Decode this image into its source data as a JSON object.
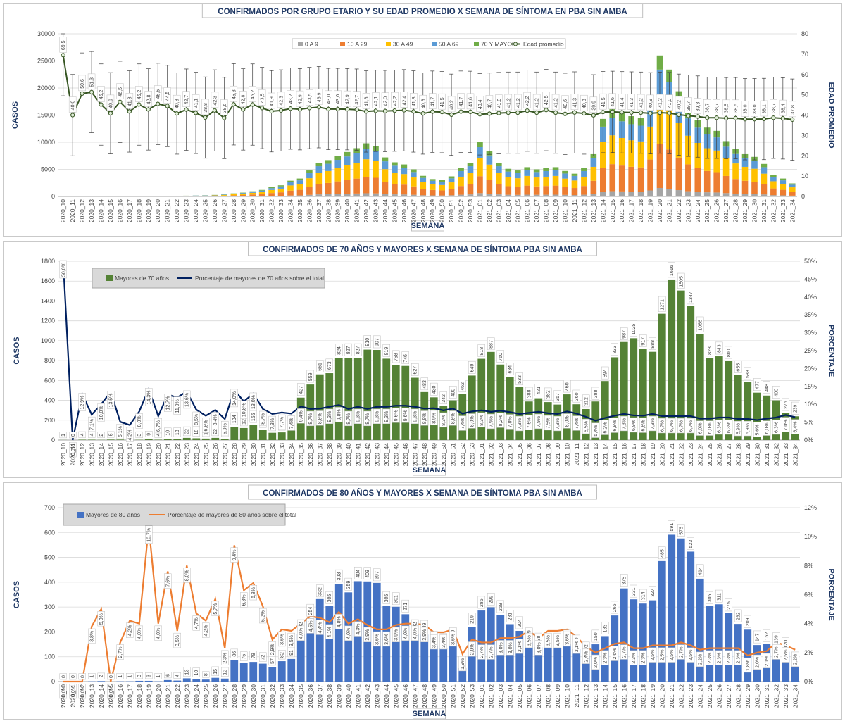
{
  "charts": [
    {
      "title": "CONFIRMADOS POR GRUPO ETARIO Y SU EDAD PROMEDIO X SEMANA DE SÍNTOMA EN PBA SIN AMBA",
      "xlabel": "SEMANA",
      "ylabel_left": "CASOS",
      "ylabel_right": "EDAD PROMEDIO",
      "left_ticks": [
        "0",
        "5000",
        "10000",
        "15000",
        "20000",
        "25000",
        "30000"
      ],
      "right_ticks": [
        "0",
        "10",
        "20",
        "30",
        "40",
        "50",
        "60",
        "70",
        "80"
      ],
      "legend": [
        "0 A 9",
        "10 A 29",
        "30 A 49",
        "50 A 69",
        "70 Y MAYOR",
        "Edad promedio"
      ]
    },
    {
      "title": "CONFIRMADOS DE 70 AÑOS Y MAYORES X SEMANA DE SÍNTOMA PBA SIN AMBA",
      "xlabel": "SEMANA",
      "ylabel_left": "CASOS",
      "ylabel_right": "PORCENTAJE",
      "left_ticks": [
        "0",
        "200",
        "400",
        "600",
        "800",
        "1000",
        "1200",
        "1400",
        "1600",
        "1800"
      ],
      "right_ticks": [
        "0%",
        "5%",
        "10%",
        "15%",
        "20%",
        "25%",
        "30%",
        "35%",
        "40%",
        "45%",
        "50%"
      ],
      "legend": [
        "Mayores de 70 años",
        "Porcentaje de mayores de 70 años sobre el total"
      ]
    },
    {
      "title": "CONFIRMADOS DE 80 AÑOS Y MAYORES X SEMANA DE SÍNTOMA PBA SIN AMBA",
      "xlabel": "SEMANA",
      "ylabel_left": "CASOS",
      "ylabel_right": "PORCENTAJE",
      "left_ticks": [
        "0",
        "100",
        "200",
        "300",
        "400",
        "500",
        "600",
        "700"
      ],
      "right_ticks": [
        "0%",
        "2%",
        "4%",
        "6%",
        "8%",
        "10%",
        "12%"
      ],
      "legend": [
        "Mayores de 80 años",
        "Porcentaje de mayores de 80 años sobre el total"
      ]
    }
  ],
  "colors": {
    "c0a9": "#a5a5a5",
    "c10a29": "#ed7d31",
    "c30a49": "#ffc000",
    "c50a69": "#5b9bd5",
    "c70": "#70ad47",
    "edad": "#375623",
    "green_bar": "#548235",
    "navy_line": "#002060",
    "blue_bar": "#4472c4",
    "orange_line": "#ed7d31"
  },
  "chart_data": [
    {
      "type": "bar",
      "stacked": true,
      "categories": [
        "2020_10",
        "2020_11",
        "2020_12",
        "2020_13",
        "2020_14",
        "2020_15",
        "2020_16",
        "2020_17",
        "2020_18",
        "2020_19",
        "2020_20",
        "2020_21",
        "2020_22",
        "2020_23",
        "2020_24",
        "2020_25",
        "2020_26",
        "2020_27",
        "2020_28",
        "2020_29",
        "2020_30",
        "2020_31",
        "2020_32",
        "2020_33",
        "2020_34",
        "2020_35",
        "2020_36",
        "2020_37",
        "2020_38",
        "2020_39",
        "2020_40",
        "2020_41",
        "2020_42",
        "2020_43",
        "2020_44",
        "2020_45",
        "2020_46",
        "2020_47",
        "2020_48",
        "2020_49",
        "2020_50",
        "2020_51",
        "2020_52",
        "2020_53",
        "2021_01",
        "2021_02",
        "2021_03",
        "2021_04",
        "2021_05",
        "2021_06",
        "2021_07",
        "2021_08",
        "2021_09",
        "2021_10",
        "2021_11",
        "2021_12",
        "2021_13",
        "2021_14",
        "2021_15",
        "2021_16",
        "2021_17",
        "2021_18",
        "2021_19",
        "2021_20",
        "2021_21",
        "2021_22",
        "2021_23",
        "2021_24",
        "2021_25",
        "2021_26",
        "2021_27",
        "2021_28",
        "2021_29",
        "2021_30",
        "2021_31",
        "2021_32",
        "2021_33",
        "2021_34"
      ],
      "totals": [
        2,
        10,
        33,
        57,
        20,
        48,
        29,
        40,
        66,
        55,
        50,
        96,
        110,
        140,
        180,
        220,
        280,
        360,
        560,
        700,
        950,
        1200,
        1700,
        2050,
        2900,
        3300,
        4800,
        6200,
        6700,
        7500,
        8200,
        8900,
        9800,
        9300,
        7200,
        6300,
        5900,
        5000,
        3800,
        3200,
        3000,
        3700,
        5200,
        6200,
        10100,
        8400,
        6200,
        5100,
        4800,
        5400,
        5000,
        5200,
        5400,
        4700,
        4200,
        5200,
        7800,
        14300,
        16100,
        15400,
        14800,
        14500,
        18400,
        26000,
        23400,
        19400,
        16000,
        14100,
        12700,
        12100,
        10200,
        8700,
        7800,
        7300,
        6000,
        4000,
        3300,
        2400
      ],
      "shares_order": [
        "0 A 9",
        "10 A 29",
        "30 A 49",
        "50 A 69",
        "70 Y MAYOR"
      ],
      "shares": [
        0.06,
        0.31,
        0.33,
        0.2,
        0.1
      ],
      "age_avg": [
        69.5,
        40.0,
        50.6,
        51.3,
        45.2,
        40.9,
        46.5,
        41.8,
        45.2,
        42.8,
        45.5,
        44.5,
        40.8,
        42.7,
        41.1,
        38.8,
        42.3,
        38.6,
        45.3,
        42.8,
        45.2,
        43.5,
        41.9,
        42.3,
        43.2,
        42.9,
        43.5,
        43.9,
        43.0,
        43.0,
        42.9,
        42.7,
        41.8,
        42.1,
        42.0,
        42.2,
        42.4,
        41.8,
        40.8,
        41.7,
        41.5,
        40.2,
        41.7,
        41.6,
        40.4,
        40.7,
        41.0,
        41.2,
        41.2,
        42.2,
        41.2,
        42.5,
        41.2,
        40.6,
        41.3,
        40.8,
        39.9,
        41.5,
        41.6,
        41.4,
        41.3,
        41.2,
        40.9,
        41.2,
        41.0,
        40.2,
        39.7,
        39.3,
        38.7,
        38.7,
        38.5,
        38.5,
        38.0,
        38.0,
        38.1,
        38.7,
        38.4,
        37.8
      ],
      "age_labels": [
        "69,5",
        "40,0",
        "50,6",
        "51,3",
        "45,2",
        "40,9",
        "46,5",
        "41,8",
        "45,2",
        "42,8",
        "45,5",
        "44,5",
        "40,8",
        "42,7",
        "41,1",
        "38,8",
        "42,3",
        "38,6",
        "45,3",
        "42,8",
        "45,2",
        "43,5",
        "41,9",
        "42,3",
        "43,2",
        "42,9",
        "43,5",
        "43,9",
        "43,0",
        "43,0",
        "42,9",
        "42,7",
        "41,8",
        "42,1",
        "42,0",
        "42,2",
        "42,4",
        "41,8",
        "40,8",
        "41,7",
        "41,5",
        "40,2",
        "41,7",
        "41,6",
        "40,4",
        "40,7",
        "41,0",
        "41,2",
        "41,2",
        "42,2",
        "41,2",
        "42,5",
        "41,2",
        "40,6",
        "41,3",
        "40,8",
        "39,9",
        "41,5",
        "41,6",
        "41,4",
        "41,3",
        "41,2",
        "40,9",
        "41,2",
        "41,0",
        "40,2",
        "39,7",
        "39,3",
        "38,7",
        "38,7",
        "38,5",
        "38,5",
        "38,0",
        "38,0",
        "38,1",
        "38,7",
        "38,4",
        "37,8"
      ],
      "ylim_left": [
        0,
        30000
      ],
      "ylim_right": [
        0,
        80
      ]
    },
    {
      "type": "bar",
      "categories": [
        "2020_10",
        "2020_11",
        "2020_12",
        "2020_13",
        "2020_14",
        "2020_15",
        "2020_16",
        "2020_17",
        "2020_18",
        "2020_19",
        "2020_20",
        "2020_21",
        "2020_22",
        "2020_23",
        "2020_24",
        "2020_25",
        "2020_26",
        "2020_27",
        "2020_28",
        "2020_29",
        "2020_30",
        "2020_31",
        "2020_32",
        "2020_33",
        "2020_34",
        "2020_35",
        "2020_36",
        "2020_37",
        "2020_38",
        "2020_39",
        "2020_40",
        "2020_41",
        "2020_42",
        "2020_43",
        "2020_44",
        "2020_45",
        "2020_46",
        "2020_47",
        "2020_48",
        "2020_49",
        "2020_50",
        "2020_51",
        "2020_52",
        "2020_53",
        "2021_01",
        "2021_02",
        "2021_03",
        "2021_04",
        "2021_05",
        "2021_06",
        "2021_07",
        "2021_08",
        "2021_09",
        "2021_10",
        "2021_11",
        "2021_12",
        "2021_13",
        "2021_14",
        "2021_15",
        "2021_16",
        "2021_17",
        "2021_18",
        "2021_19",
        "2021_20",
        "2021_21",
        "2021_22",
        "2021_23",
        "2021_24",
        "2021_25",
        "2021_26",
        "2021_27",
        "2021_28",
        "2021_29",
        "2021_30",
        "2021_31",
        "2021_32",
        "2021_33",
        "2021_34"
      ],
      "values": [
        1,
        0,
        4,
        4,
        2,
        5,
        5,
        2,
        3,
        9,
        4,
        10,
        13,
        22,
        18,
        15,
        22,
        12,
        134,
        121,
        155,
        105,
        73,
        77,
        96,
        427,
        559,
        661,
        673,
        824,
        827,
        827,
        910,
        907,
        819,
        758,
        746,
        627,
        483,
        430,
        342,
        400,
        462,
        649,
        818,
        887,
        760,
        634,
        533,
        388,
        421,
        382,
        357,
        460,
        360,
        312,
        388,
        594,
        833,
        987,
        1025,
        917,
        888,
        1271,
        1616,
        1505,
        1347,
        1066,
        823,
        843,
        800,
        655,
        588,
        477,
        448,
        400,
        276,
        239
      ],
      "value_labels": [
        "1",
        "0",
        "4",
        "4",
        "2",
        "5",
        "5",
        "2",
        "3",
        "9",
        "4",
        "10",
        "13",
        "22",
        "18",
        "15",
        "22",
        "12",
        "134",
        "121",
        "155",
        "105",
        "73",
        "77",
        "96",
        "427",
        "559",
        "661",
        "673",
        "824",
        "827",
        "827",
        "910",
        "907",
        "819",
        "758",
        "746",
        "627",
        "483",
        "430",
        "342",
        "400",
        "462",
        "649",
        "818",
        "887",
        "760",
        "634",
        "533",
        "388",
        "421",
        "382",
        "357",
        "460",
        "360",
        "312",
        "388",
        "594",
        "833",
        "987",
        "1025",
        "917",
        "888",
        "1271",
        "1616",
        "1505",
        "1347",
        "1066",
        "823",
        "843",
        "800",
        "655",
        "588",
        "477",
        "448",
        "400",
        "276",
        "239"
      ],
      "pct": [
        50.0,
        0.0,
        12.9,
        7.1,
        10.0,
        13.5,
        5.1,
        4.2,
        8.0,
        14.3,
        6.7,
        12.7,
        11.9,
        13.6,
        8.5,
        6.8,
        8.4,
        5.9,
        14.0,
        10.8,
        13.0,
        8.7,
        7.3,
        7.7,
        7.4,
        9.4,
        8.7,
        8.8,
        9.3,
        9.8,
        8.7,
        9.3,
        8.7,
        9.3,
        9.3,
        9.6,
        9.6,
        9.3,
        8.8,
        8.9,
        8.3,
        8.8,
        7.4,
        8.0,
        8.3,
        7.9,
        8.2,
        7.8,
        7.3,
        7.6,
        7.9,
        7.5,
        7.3,
        8.0,
        7.4,
        6.5,
        5.4,
        6.2,
        6.8,
        7.3,
        6.9,
        6.8,
        7.3,
        6.7,
        6.7,
        6.7,
        6.7,
        6.0,
        6.0,
        6.3,
        6.3,
        5.9,
        5.9,
        5.6,
        6.0,
        6.3,
        7.0,
        6.4
      ],
      "pct_labels": [
        "50,0%",
        "0,0%",
        "12,9%",
        "7,1%",
        "10,0%",
        "13,5%",
        "5,1%",
        "4,2%",
        "8,0%",
        "14,3%",
        "6,7%",
        "12,7%",
        "11,9%",
        "13,6%",
        "8,5%",
        "6,8%",
        "8,4%",
        "5,9%",
        "14,0%",
        "10,8%",
        "13,0%",
        "8,7%",
        "7,3%",
        "7,7%",
        "7,4%",
        "9,4%",
        "8,7%",
        "8,8%",
        "9,3%",
        "9,8%",
        "8,7%",
        "9,3%",
        "8,7%",
        "9,3%",
        "9,3%",
        "9,6%",
        "9,6%",
        "9,3%",
        "8,8%",
        "8,9%",
        "8,3%",
        "8,8%",
        "7,4%",
        "8,0%",
        "8,3%",
        "7,9%",
        "8,2%",
        "7,8%",
        "7,3%",
        "7,6%",
        "7,9%",
        "7,5%",
        "7,3%",
        "8,0%",
        "7,4%",
        "6,5%",
        "5,4%",
        "6,2%",
        "6,8%",
        "7,3%",
        "6,9%",
        "6,8%",
        "7,3%",
        "6,7%",
        "6,7%",
        "6,7%",
        "6,7%",
        "6,0%",
        "6,0%",
        "6,3%",
        "6,3%",
        "5,9%",
        "5,9%",
        "5,6%",
        "6,0%",
        "6,3%",
        "7,0%",
        "6,4%"
      ],
      "ylim_left": [
        0,
        1800
      ],
      "ylim_right": [
        0,
        50
      ]
    },
    {
      "type": "bar",
      "categories": [
        "2020_10",
        "2020_11",
        "2020_12",
        "2020_13",
        "2020_14",
        "2020_15",
        "2020_16",
        "2020_17",
        "2020_18",
        "2020_19",
        "2020_20",
        "2020_21",
        "2020_22",
        "2020_23",
        "2020_24",
        "2020_25",
        "2020_26",
        "2020_27",
        "2020_28",
        "2020_29",
        "2020_30",
        "2020_31",
        "2020_32",
        "2020_33",
        "2020_34",
        "2020_35",
        "2020_36",
        "2020_37",
        "2020_38",
        "2020_39",
        "2020_40",
        "2020_41",
        "2020_42",
        "2020_43",
        "2020_44",
        "2020_45",
        "2020_46",
        "2020_47",
        "2020_48",
        "2020_49",
        "2020_50",
        "2020_51",
        "2020_52",
        "2020_53",
        "2021_01",
        "2021_02",
        "2021_03",
        "2021_04",
        "2021_05",
        "2021_06",
        "2021_07",
        "2021_08",
        "2021_09",
        "2021_10",
        "2021_11",
        "2021_12",
        "2021_13",
        "2021_14",
        "2021_15",
        "2021_16",
        "2021_17",
        "2021_18",
        "2021_19",
        "2021_20",
        "2021_21",
        "2021_22",
        "2021_23",
        "2021_24",
        "2021_25",
        "2021_26",
        "2021_27",
        "2021_28",
        "2021_29",
        "2021_30",
        "2021_31",
        "2021_32",
        "2021_33",
        "2021_34"
      ],
      "values": [
        0,
        0,
        0,
        1,
        2,
        0,
        1,
        1,
        3,
        3,
        1,
        6,
        4,
        13,
        10,
        8,
        15,
        12,
        86,
        75,
        79,
        72,
        57,
        82,
        91,
        192,
        254,
        332,
        305,
        393,
        359,
        404,
        403,
        397,
        305,
        301,
        271,
        192,
        189,
        145,
        136,
        160,
        54,
        219,
        286,
        299,
        269,
        231,
        204,
        159,
        138,
        136,
        134,
        150,
        130,
        102,
        150,
        183,
        266,
        375,
        331,
        314,
        327,
        485,
        591,
        576,
        523,
        414,
        305,
        311,
        275,
        232,
        209,
        147,
        152,
        139,
        120,
        63
      ],
      "value_labels": [
        "0",
        "0",
        "0",
        "1",
        "2",
        "0",
        "1",
        "1",
        "3",
        "3",
        "1",
        "6",
        "4",
        "13",
        "10",
        "8",
        "15",
        "12",
        "86",
        "75",
        "79",
        "72",
        "57",
        "82",
        "91",
        "192",
        "254",
        "332",
        "305",
        "393",
        "359",
        "404",
        "403",
        "397",
        "305",
        "301",
        "271",
        "192",
        "189",
        "145",
        "136",
        "160",
        "54",
        "219",
        "286",
        "299",
        "269",
        "231",
        "204",
        "159",
        "138",
        "136",
        "134",
        "150",
        "130",
        "102",
        "150",
        "183",
        "266",
        "375",
        "331",
        "314",
        "327",
        "485",
        "591",
        "576",
        "523",
        "414",
        "305",
        "311",
        "275",
        "232",
        "209",
        "147",
        "152",
        "139",
        "120",
        "63"
      ],
      "pct": [
        0,
        0,
        0,
        3.8,
        5.0,
        0,
        2.7,
        4.2,
        4.0,
        10.7,
        4.0,
        7.6,
        3.5,
        8.0,
        4.7,
        4.2,
        5.7,
        2.3,
        9.4,
        6.3,
        6.8,
        5.2,
        2.9,
        3.6,
        3.5,
        4.0,
        4.5,
        4.4,
        4.1,
        4.8,
        4.0,
        4.3,
        3.9,
        3.6,
        3.6,
        3.9,
        4.0,
        4.0,
        3.9,
        3.4,
        3.4,
        3.6,
        1.9,
        2.9,
        2.7,
        2.7,
        3.0,
        3.0,
        3.1,
        3.5,
        3.0,
        3.5,
        3.5,
        3.6,
        3.1,
        2.4,
        2.0,
        2.3,
        2.6,
        2.7,
        2.3,
        2.3,
        2.5,
        2.5,
        2.5,
        2.7,
        2.5,
        2.2,
        2.3,
        2.3,
        2.3,
        2.3,
        1.8,
        2.0,
        2.1,
        2.7,
        2.5,
        2.2
      ],
      "pct_labels": [
        "0,0%",
        "0,0%",
        "0,0%",
        "3,8%",
        "5,0%",
        "0,0%",
        "2,7%",
        "4,2%",
        "4,0%",
        "10,7%",
        "4,0%",
        "7,6%",
        "3,5%",
        "8,0%",
        "4,7%",
        "4,2%",
        "5,7%",
        "2,3%",
        "9,4%",
        "6,3%",
        "6,8%",
        "5,2%",
        "2,9%",
        "3,6%",
        "3,5%",
        "4,0%",
        "4,5%",
        "4,4%",
        "4,1%",
        "4,8%",
        "4,0%",
        "4,3%",
        "3,9%",
        "3,6%",
        "3,6%",
        "3,9%",
        "4,0%",
        "4,0%",
        "3,9%",
        "3,4%",
        "3,4%",
        "3,6%",
        "1,9%",
        "2,9%",
        "2,7%",
        "2,7%",
        "3,0%",
        "3,0%",
        "3,1%",
        "3,5%",
        "3,0%",
        "3,5%",
        "3,5%",
        "3,6%",
        "3,1%",
        "2,4%",
        "2,0%",
        "2,3%",
        "2,6%",
        "2,7%",
        "2,3%",
        "2,3%",
        "2,5%",
        "2,5%",
        "2,5%",
        "2,7%",
        "2,5%",
        "2,2%",
        "2,3%",
        "2,3%",
        "2,3%",
        "2,3%",
        "1,8%",
        "2,0%",
        "2,1%",
        "2,7%",
        "2,5%",
        "2,2%"
      ],
      "ylim_left": [
        0,
        700
      ],
      "ylim_right": [
        0,
        12
      ]
    }
  ]
}
